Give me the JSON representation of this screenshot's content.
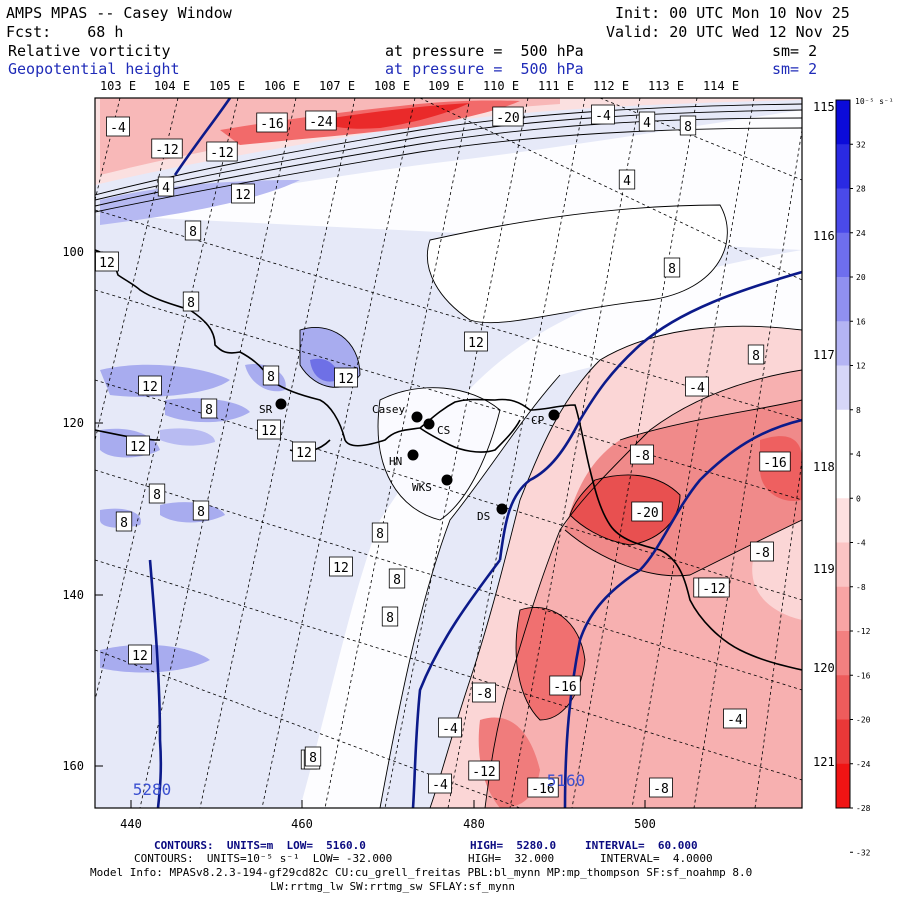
{
  "header": {
    "title": "AMPS MPAS -- Casey Window",
    "forecast": "Fcst:    68 h",
    "init": "Init: 00 UTC Mon 10 Nov 25",
    "valid": "Valid: 20 UTC Wed 12 Nov 25",
    "field1_name": "Relative vorticity",
    "field1_level": "at pressure =  500 hPa",
    "field1_sm": "sm= 2",
    "field2_name": "Geopotential height",
    "field2_level": "at pressure =  500 hPa",
    "field2_sm": "sm= 2"
  },
  "axes": {
    "top_lon": [
      "103 E",
      "104 E",
      "105 E",
      "106 E",
      "107 E",
      "108 E",
      "109 E",
      "110 E",
      "111 E",
      "112 E",
      "113 E",
      "114 E"
    ],
    "right_lon": [
      "115 E",
      "116 E",
      "117 E",
      "118 E",
      "119 E",
      "120 E",
      "121 E"
    ],
    "x_ticks": [
      "440",
      "460",
      "480",
      "500"
    ],
    "y_ticks": [
      "100",
      "120",
      "140",
      "160"
    ]
  },
  "colorbar": {
    "unit": "10⁻⁵ s⁻¹",
    "labels": [
      "32",
      "28",
      "24",
      "20",
      "16",
      "12",
      "8",
      "4",
      "0",
      "-4",
      "-8",
      "-12",
      "-16",
      "-20",
      "-24",
      "-28",
      "-32"
    ],
    "colors": [
      "#0b0bd9",
      "#2a2ae3",
      "#4a4aea",
      "#6e6eee",
      "#9090f0",
      "#b4b4f4",
      "#d6d6f8",
      "#ffffff",
      "#ffffff",
      "#fde0e0",
      "#fbc4c4",
      "#f8a4a4",
      "#f38080",
      "#ee5c5c",
      "#ea3838",
      "#f01414"
    ]
  },
  "stations": [
    {
      "label": "SR"
    },
    {
      "label": "Casey"
    },
    {
      "label": "CS"
    },
    {
      "label": "CP"
    },
    {
      "label": "HN"
    },
    {
      "label": "WKS"
    },
    {
      "label": "DS"
    }
  ],
  "vort_labels": [
    "-4",
    "-16",
    "-24",
    "-20",
    "-4",
    "4",
    "8",
    "-12",
    "-12",
    "4",
    "12",
    "8",
    "12",
    "8",
    "12",
    "8",
    "8",
    "12",
    "12",
    "12",
    "12",
    "8",
    "8",
    "8",
    "12",
    "8",
    "12",
    "8",
    "8",
    "8",
    "4",
    "8",
    "12",
    "8",
    "-4",
    "-8",
    "-16",
    "-20",
    "-20",
    "-12",
    "-8",
    "-8",
    "-16",
    "-4",
    "-4",
    "-12",
    "-16",
    "-8",
    "-4",
    "4",
    "8"
  ],
  "height_labels": [
    "5280",
    "5160"
  ],
  "footer": {
    "line1_a": "CONTOURS:  UNITS=m  LOW=  5160.0",
    "line1_b": "HIGH=  5280.0",
    "line1_c": "INTERVAL=  60.000",
    "line2_a": "CONTOURS:  UNITS=10⁻⁵ s⁻¹  LOW= -32.000",
    "line2_b": "HIGH=  32.000",
    "line2_c": "INTERVAL=  4.0000",
    "model_info": "Model Info: MPASv8.2.3-194-gf29cd82c CU:cu_grell_freitas PBL:bl_mynn MP:mp_thompson SF:sf_noahmp 8.0",
    "model_info2": "LW:rrtmg_lw SW:rrtmg_sw SFLAY:sf_mynn"
  }
}
